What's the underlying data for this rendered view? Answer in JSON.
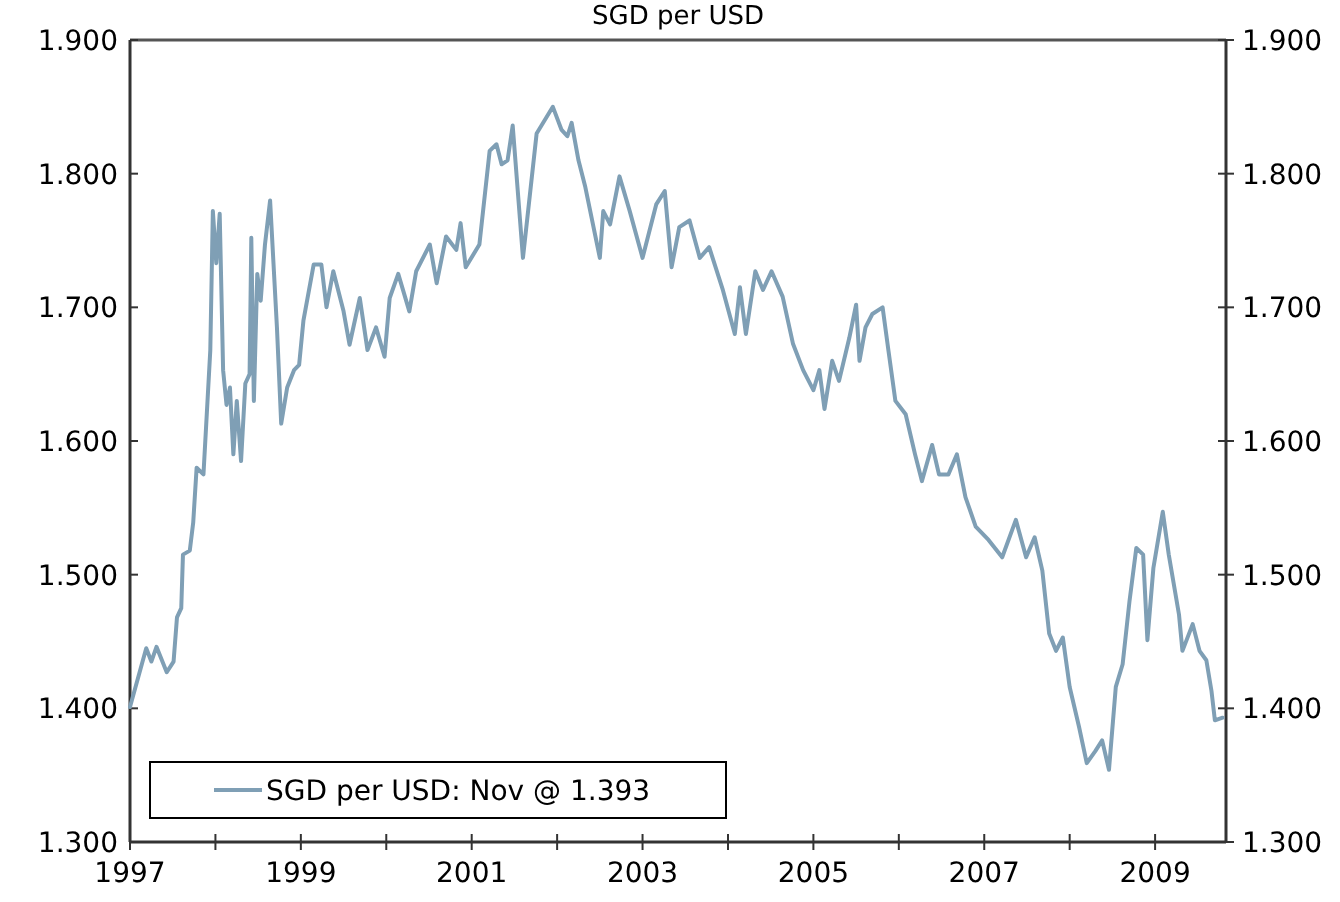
{
  "chart_data": {
    "type": "line",
    "title": "SGD per USD",
    "x": [
      1997.0,
      1997.19,
      1997.25,
      1997.31,
      1997.43,
      1997.51,
      1997.55,
      1997.6,
      1997.62,
      1997.7,
      1997.74,
      1997.78,
      1997.86,
      1997.94,
      1997.97,
      1998.01,
      1998.05,
      1998.09,
      1998.13,
      1998.17,
      1998.21,
      1998.25,
      1998.3,
      1998.35,
      1998.4,
      1998.42,
      1998.45,
      1998.49,
      1998.53,
      1998.58,
      1998.64,
      1998.72,
      1998.77,
      1998.84,
      1998.92,
      1998.98,
      1999.03,
      1999.15,
      1999.24,
      1999.3,
      1999.38,
      1999.5,
      1999.57,
      1999.69,
      1999.78,
      1999.88,
      1999.98,
      2000.04,
      2000.14,
      2000.27,
      2000.35,
      2000.51,
      2000.59,
      2000.7,
      2000.82,
      2000.87,
      2000.93,
      2001.09,
      2001.21,
      2001.29,
      2001.35,
      2001.42,
      2001.48,
      2001.6,
      2001.76,
      2001.95,
      2002.05,
      2002.12,
      2002.17,
      2002.25,
      2002.33,
      2002.5,
      2002.54,
      2002.62,
      2002.73,
      2002.85,
      2003.0,
      2003.16,
      2003.26,
      2003.34,
      2003.43,
      2003.55,
      2003.67,
      2003.78,
      2003.94,
      2004.08,
      2004.14,
      2004.21,
      2004.32,
      2004.41,
      2004.51,
      2004.64,
      2004.76,
      2004.88,
      2005.0,
      2005.07,
      2005.13,
      2005.22,
      2005.3,
      2005.42,
      2005.5,
      2005.54,
      2005.61,
      2005.69,
      2005.81,
      2005.88,
      2005.96,
      2006.08,
      2006.19,
      2006.27,
      2006.39,
      2006.47,
      2006.58,
      2006.68,
      2006.78,
      2006.9,
      2007.05,
      2007.21,
      2007.37,
      2007.49,
      2007.59,
      2007.68,
      2007.76,
      2007.84,
      2007.92,
      2008.0,
      2008.11,
      2008.2,
      2008.3,
      2008.38,
      2008.46,
      2008.54,
      2008.62,
      2008.7,
      2008.78,
      2008.86,
      2008.91,
      2008.98,
      2009.09,
      2009.16,
      2009.28,
      2009.32,
      2009.44,
      2009.52,
      2009.6,
      2009.66,
      2009.7,
      2009.79
    ],
    "series": [
      {
        "name": "SGD per USD: Nov @ 1.393",
        "color": "#7f9fb5",
        "values": [
          1.401,
          1.445,
          1.435,
          1.446,
          1.427,
          1.435,
          1.468,
          1.475,
          1.515,
          1.518,
          1.539,
          1.58,
          1.575,
          1.668,
          1.772,
          1.733,
          1.77,
          1.653,
          1.627,
          1.64,
          1.59,
          1.63,
          1.585,
          1.643,
          1.65,
          1.752,
          1.63,
          1.725,
          1.705,
          1.747,
          1.78,
          1.685,
          1.613,
          1.64,
          1.653,
          1.657,
          1.69,
          1.732,
          1.732,
          1.7,
          1.727,
          1.697,
          1.672,
          1.707,
          1.668,
          1.685,
          1.663,
          1.707,
          1.725,
          1.697,
          1.727,
          1.747,
          1.718,
          1.753,
          1.743,
          1.763,
          1.73,
          1.747,
          1.817,
          1.822,
          1.807,
          1.81,
          1.836,
          1.737,
          1.83,
          1.85,
          1.833,
          1.828,
          1.838,
          1.81,
          1.79,
          1.737,
          1.772,
          1.762,
          1.798,
          1.772,
          1.737,
          1.777,
          1.787,
          1.73,
          1.76,
          1.765,
          1.737,
          1.745,
          1.713,
          1.68,
          1.715,
          1.68,
          1.727,
          1.713,
          1.727,
          1.708,
          1.673,
          1.653,
          1.638,
          1.653,
          1.624,
          1.66,
          1.645,
          1.677,
          1.702,
          1.66,
          1.685,
          1.695,
          1.7,
          1.667,
          1.63,
          1.62,
          1.59,
          1.57,
          1.597,
          1.575,
          1.575,
          1.59,
          1.558,
          1.536,
          1.526,
          1.513,
          1.541,
          1.513,
          1.528,
          1.503,
          1.456,
          1.443,
          1.453,
          1.416,
          1.386,
          1.359,
          1.368,
          1.376,
          1.354,
          1.416,
          1.433,
          1.48,
          1.52,
          1.515,
          1.451,
          1.505,
          1.547,
          1.515,
          1.47,
          1.443,
          1.463,
          1.443,
          1.436,
          1.413,
          1.391,
          1.393
        ]
      }
    ],
    "xlim": [
      1997,
      2009.83
    ],
    "xticks": [
      1997,
      {
        "value": 1998,
        "label": null
      },
      1999,
      {
        "value": 2000,
        "label": null
      },
      2001,
      {
        "value": 2002,
        "label": null
      },
      2003,
      {
        "value": 2004,
        "label": null
      },
      2005,
      {
        "value": 2006,
        "label": null
      },
      2007,
      {
        "value": 2008,
        "label": null
      },
      2009
    ],
    "ylim": [
      1.3,
      1.9
    ],
    "yticks": [
      {
        "value": 1.3,
        "label": "1.300"
      },
      {
        "value": 1.4,
        "label": "1.400"
      },
      {
        "value": 1.5,
        "label": "1.500"
      },
      {
        "value": 1.6,
        "label": "1.600"
      },
      {
        "value": 1.7,
        "label": "1.700"
      },
      {
        "value": 1.8,
        "label": "1.800"
      },
      {
        "value": 1.9,
        "label": "1.900"
      }
    ],
    "y2lim": [
      1.3,
      1.9
    ],
    "y2ticks": [
      {
        "value": 1.3,
        "label": "1.300"
      },
      {
        "value": 1.4,
        "label": "1.400"
      },
      {
        "value": 1.5,
        "label": "1.500"
      },
      {
        "value": 1.6,
        "label": "1.600"
      },
      {
        "value": 1.7,
        "label": "1.700"
      },
      {
        "value": 1.8,
        "label": "1.800"
      },
      {
        "value": 1.9,
        "label": "1.900"
      }
    ],
    "grid": false,
    "legend": "bottom left",
    "line_style": "solid",
    "marker": "none"
  }
}
